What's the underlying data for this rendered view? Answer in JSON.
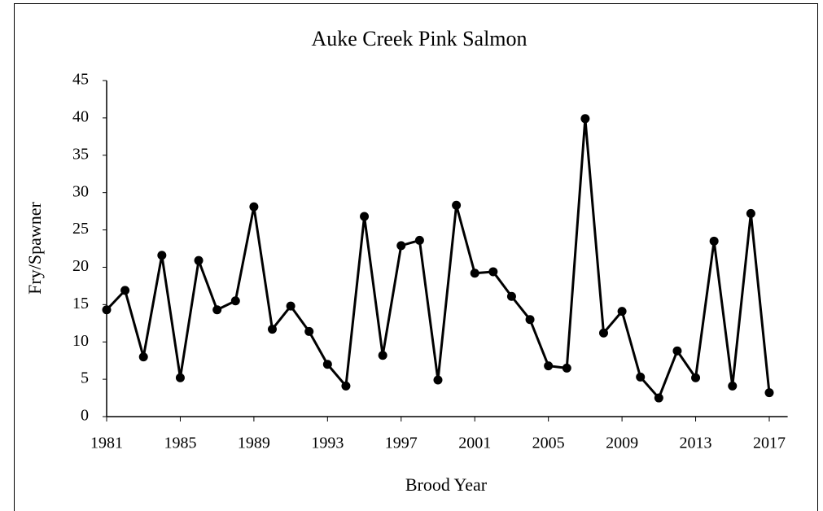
{
  "chart_data": {
    "type": "line",
    "title": "Auke Creek Pink Salmon",
    "x_label": "Brood Year",
    "y_label": "Fry/Spawner",
    "x": [
      1981,
      1982,
      1983,
      1984,
      1985,
      1986,
      1987,
      1988,
      1989,
      1990,
      1991,
      1992,
      1993,
      1994,
      1995,
      1996,
      1997,
      1998,
      1999,
      2000,
      2001,
      2002,
      2003,
      2004,
      2005,
      2006,
      2007,
      2008,
      2009,
      2010,
      2011,
      2012,
      2013,
      2014,
      2015,
      2016,
      2017
    ],
    "series": [
      {
        "name": "Fry/Spawner",
        "color": "#000000",
        "values": [
          14.3,
          16.9,
          8.0,
          21.6,
          5.2,
          20.9,
          14.3,
          15.5,
          28.1,
          11.7,
          14.8,
          11.4,
          7.0,
          4.1,
          26.8,
          8.2,
          22.9,
          23.6,
          4.9,
          28.3,
          19.2,
          19.4,
          16.1,
          13.0,
          6.8,
          6.5,
          39.9,
          11.2,
          14.1,
          5.3,
          2.5,
          8.8,
          5.2,
          23.5,
          4.1,
          27.2,
          3.2
        ]
      }
    ],
    "xlim": [
      1981,
      2018
    ],
    "xticks": [
      1981,
      1985,
      1989,
      1993,
      1997,
      2001,
      2005,
      2009,
      2013,
      2017
    ],
    "ylim": [
      0,
      45
    ],
    "yticks": [
      0,
      5,
      10,
      15,
      20,
      25,
      30,
      35,
      40,
      45
    ],
    "grid": false
  }
}
